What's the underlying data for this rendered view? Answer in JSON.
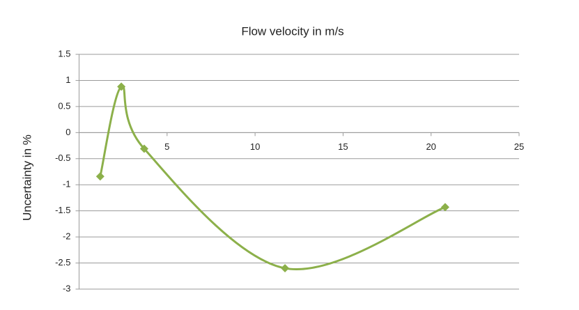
{
  "chart_data": {
    "type": "scatter",
    "title": "Flow velocity in m/s",
    "y_label": "Uncertainty in %",
    "series": [
      {
        "color": "#8cb04a",
        "x": [
          1.2,
          2.4,
          3.7,
          11.7,
          20.8
        ],
        "values": [
          -0.84,
          0.88,
          -0.31,
          -2.6,
          -1.43
        ]
      }
    ],
    "smooth": true,
    "xlim": [
      0,
      25
    ],
    "xticks": [
      5,
      10,
      15,
      20,
      25
    ],
    "ylim": [
      -3,
      1.5
    ],
    "yticks": [
      -3,
      -2.5,
      -2,
      -1.5,
      -1,
      -0.5,
      0,
      0.5,
      1,
      1.5
    ],
    "grid": true
  }
}
